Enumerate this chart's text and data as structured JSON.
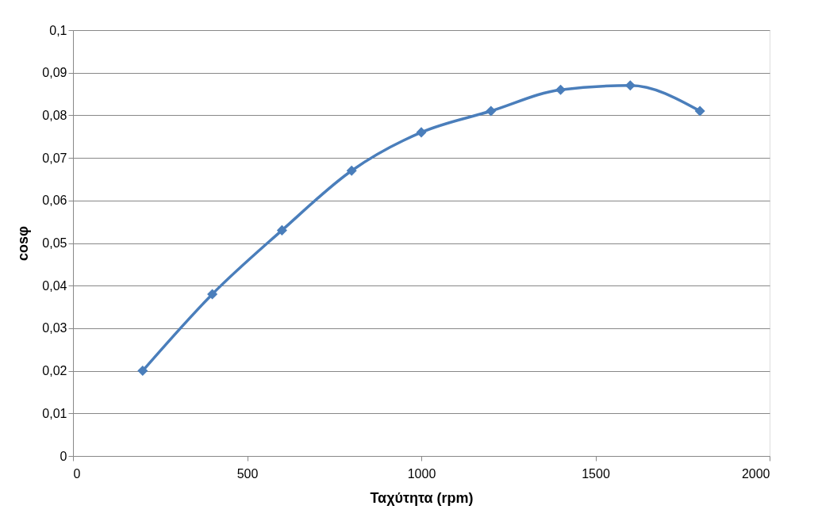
{
  "chart_data": {
    "type": "line",
    "xlabel": "Ταχύτητα (rpm)",
    "ylabel": "cosφ",
    "x": [
      200,
      400,
      600,
      800,
      1000,
      1200,
      1400,
      1600,
      1800
    ],
    "series": [
      {
        "color": "#4a7ebb",
        "values": [
          0.02,
          0.038,
          0.053,
          0.067,
          0.076,
          0.081,
          0.086,
          0.087,
          0.081
        ]
      }
    ],
    "xlim": [
      0,
      2000
    ],
    "xticks": [
      0,
      500,
      1000,
      1500,
      2000
    ],
    "ylim": [
      0,
      0.1
    ],
    "yticks": [
      0,
      {
        "value": 0.01,
        "label": "0,01"
      },
      {
        "value": 0.02,
        "label": "0,02"
      },
      {
        "value": 0.03,
        "label": "0,03"
      },
      {
        "value": 0.04,
        "label": "0,04"
      },
      {
        "value": 0.05,
        "label": "0,05"
      },
      {
        "value": 0.06,
        "label": "0,06"
      },
      {
        "value": 0.07,
        "label": "0,07"
      },
      {
        "value": 0.08,
        "label": "0,08"
      },
      {
        "value": 0.09,
        "label": "0,09"
      },
      {
        "value": 0.1,
        "label": "0,1"
      }
    ],
    "grid": "y",
    "marker": "diamond",
    "line_style": "solid"
  }
}
